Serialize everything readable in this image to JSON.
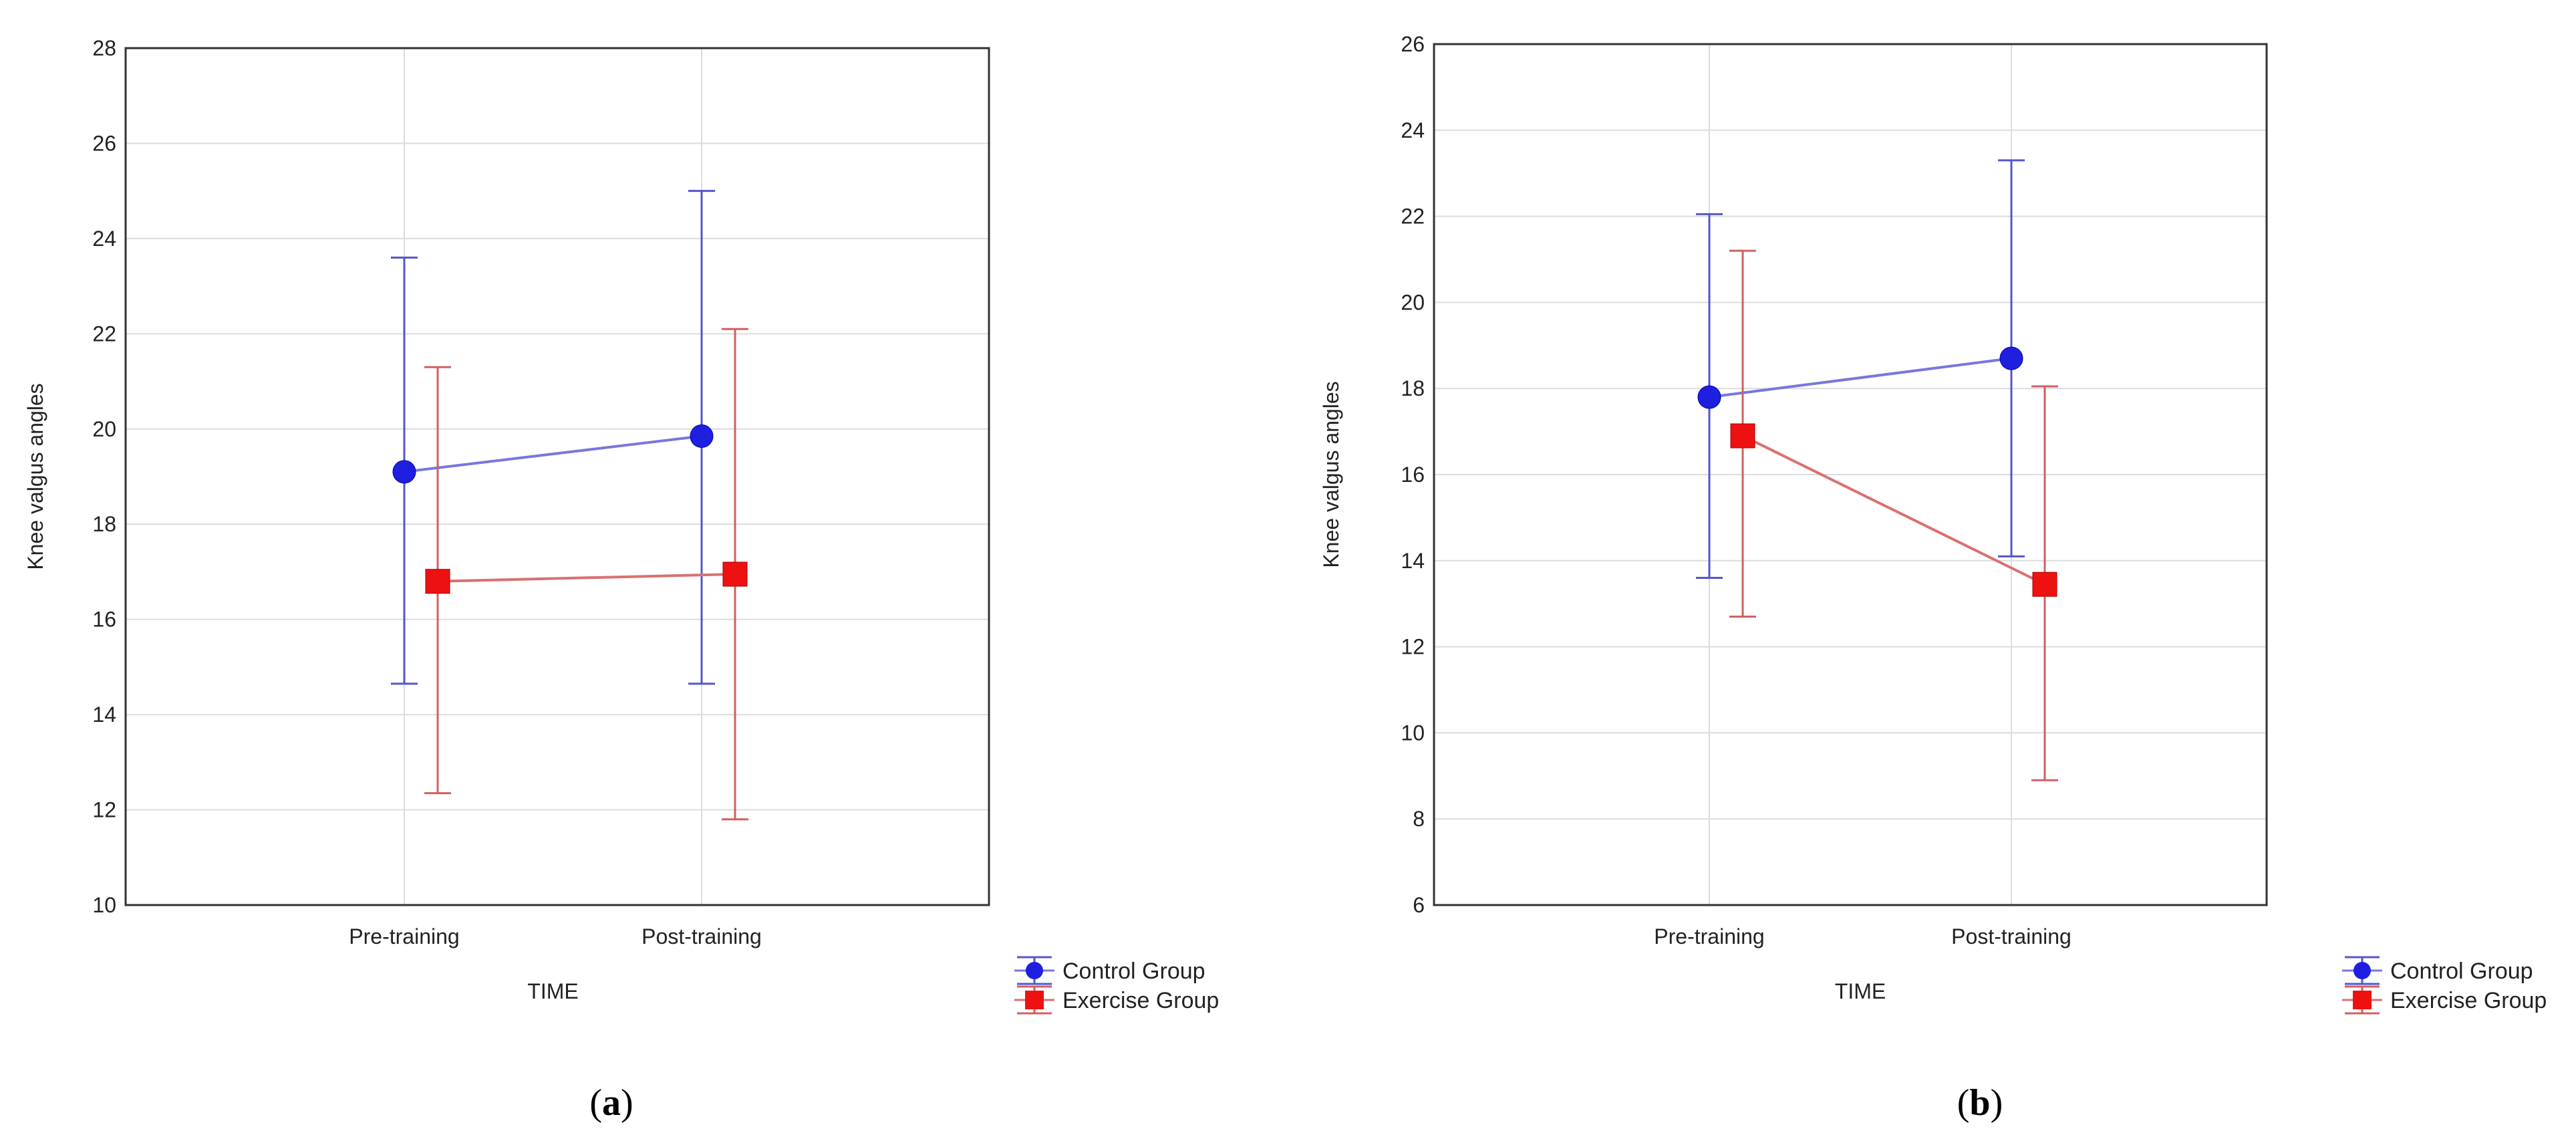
{
  "chart_data": [
    {
      "id": "a",
      "type": "line",
      "caption_open": "(",
      "caption_letter": "a",
      "caption_close": ")",
      "title": "",
      "xlabel": "TIME",
      "ylabel": "Knee valgus angles",
      "categories": [
        "Pre-training",
        "Post-training"
      ],
      "ylim": [
        10,
        28
      ],
      "yticks": [
        "10",
        "12",
        "14",
        "16",
        "18",
        "20",
        "22",
        "24",
        "26",
        "28"
      ],
      "grid": true,
      "legend_position": "bottom-right outside",
      "series": [
        {
          "name": "Control Group",
          "color": "#1f1fe0",
          "line_color": "#7777dd",
          "whisker_color": "#5555cc",
          "marker": "circle",
          "values": [
            19.1,
            19.85
          ],
          "lower": [
            14.65,
            14.65
          ],
          "upper": [
            23.6,
            25.0
          ]
        },
        {
          "name": "Exercise Group",
          "color": "#ee1111",
          "line_color": "#d97070",
          "whisker_color": "#d06060",
          "marker": "square",
          "values": [
            16.8,
            16.95
          ],
          "lower": [
            12.35,
            11.8
          ],
          "upper": [
            21.3,
            22.1
          ]
        }
      ]
    },
    {
      "id": "b",
      "type": "line",
      "caption_open": "(",
      "caption_letter": "b",
      "caption_close": ")",
      "title": "",
      "xlabel": "TIME",
      "ylabel": "Knee valgus angles",
      "categories": [
        "Pre-training",
        "Post-training"
      ],
      "ylim": [
        6,
        26
      ],
      "yticks": [
        "6",
        "8",
        "10",
        "12",
        "14",
        "16",
        "18",
        "20",
        "22",
        "24",
        "26"
      ],
      "grid": true,
      "legend_position": "bottom-right outside",
      "series": [
        {
          "name": "Control Group",
          "color": "#1f1fe0",
          "line_color": "#7777dd",
          "whisker_color": "#5555cc",
          "marker": "circle",
          "values": [
            17.8,
            18.7
          ],
          "lower": [
            13.6,
            14.1
          ],
          "upper": [
            22.05,
            23.3
          ]
        },
        {
          "name": "Exercise Group",
          "color": "#ee1111",
          "line_color": "#d97070",
          "whisker_color": "#d06060",
          "marker": "square",
          "values": [
            16.9,
            13.45
          ],
          "lower": [
            12.7,
            8.9
          ],
          "upper": [
            21.2,
            18.05
          ]
        }
      ]
    }
  ]
}
